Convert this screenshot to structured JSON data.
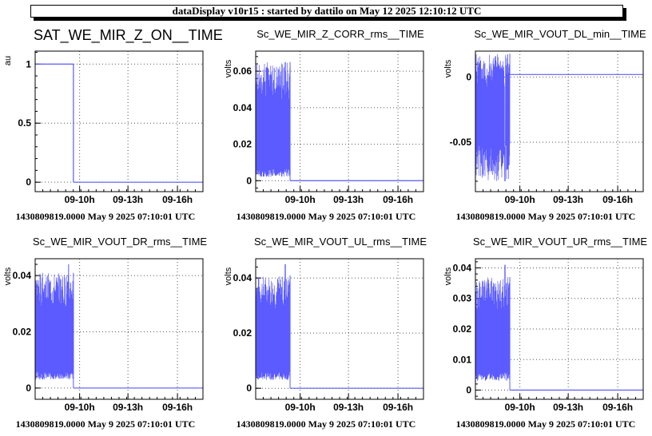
{
  "header": {
    "title": "dataDisplay v10r15 : started by dattilo on May 12 2025 12:10:12 UTC"
  },
  "colors": {
    "series": "#5b5bff",
    "grid": "#555555"
  },
  "chart_data": [
    {
      "type": "line",
      "title": "SAT_WE_MIR_Z_ON__TIME",
      "ylabel": "au",
      "ylim": [
        -0.08,
        1.11
      ],
      "yticks": [
        {
          "v": 0,
          "label": "0"
        },
        {
          "v": 0.5,
          "label": "0.5"
        },
        {
          "v": 1,
          "label": "1"
        }
      ],
      "xticks": [
        "09-10h",
        "09-13h",
        "09-16h"
      ],
      "footer": "1430809819.0000 May 9 2025 07:10:01 UTC",
      "segments": [
        {
          "x": [
            0,
            0.228
          ],
          "y": [
            1,
            1
          ]
        },
        {
          "x": [
            0.228,
            0.228
          ],
          "y": [
            1,
            0
          ]
        },
        {
          "x": [
            0.228,
            1
          ],
          "y": [
            0,
            0
          ]
        }
      ],
      "noise": null
    },
    {
      "type": "line",
      "title": "Sc_WE_MIR_Z_CORR_rms__TIME",
      "ylabel": "volts",
      "ylim": [
        -0.006,
        0.071
      ],
      "yticks": [
        {
          "v": 0,
          "label": "0"
        },
        {
          "v": 0.02,
          "label": "0.02"
        },
        {
          "v": 0.04,
          "label": "0.04"
        },
        {
          "v": 0.06,
          "label": "0.06"
        }
      ],
      "xticks": [
        "09-10h",
        "09-13h",
        "09-16h"
      ],
      "footer": "1430809819.0000 May 9 2025 07:10:01 UTC",
      "segments": [
        {
          "x": [
            0.205,
            1
          ],
          "y": [
            0,
            0
          ]
        }
      ],
      "noise": {
        "x_end": 0.205,
        "low": [
          0.002,
          0.007
        ],
        "high": [
          0.042,
          0.065
        ],
        "peak": 0.065
      }
    },
    {
      "type": "line",
      "title": "Sc_WE_MIR_VOUT_DL_min__TIME",
      "ylabel": "volts",
      "ylim": [
        -0.088,
        0.02
      ],
      "yticks": [
        {
          "v": -0.05,
          "label": "-0.05"
        },
        {
          "v": 0,
          "label": "0"
        }
      ],
      "xticks": [
        "09-10h",
        "09-13h",
        "09-16h"
      ],
      "footer": "1430809819.0000 May 9 2025 07:10:01 UTC",
      "segments": [
        {
          "x": [
            0.205,
            1
          ],
          "y": [
            0.002,
            0.002
          ]
        }
      ],
      "noise": {
        "x_end": 0.205,
        "low": [
          -0.08,
          -0.05
        ],
        "high": [
          -0.01,
          0.018
        ],
        "peak": -0.08
      }
    },
    {
      "type": "line",
      "title": "Sc_WE_MIR_VOUT_DR_rms__TIME",
      "ylabel": "volts",
      "ylim": [
        -0.004,
        0.046
      ],
      "yticks": [
        {
          "v": 0,
          "label": "0"
        },
        {
          "v": 0.02,
          "label": "0.02"
        },
        {
          "v": 0.04,
          "label": "0.04"
        }
      ],
      "xticks": [
        "09-10h",
        "09-13h",
        "09-16h"
      ],
      "footer": "1430809819.0000 May 9 2025 07:10:01 UTC",
      "segments": [
        {
          "x": [
            0.228,
            1
          ],
          "y": [
            0,
            0
          ]
        }
      ],
      "noise": {
        "x_end": 0.228,
        "low": [
          0.003,
          0.006
        ],
        "high": [
          0.028,
          0.041
        ],
        "peak": 0.044
      }
    },
    {
      "type": "line",
      "title": "Sc_WE_MIR_VOUT_UL_rms__TIME",
      "ylabel": "volts",
      "ylim": [
        -0.004,
        0.047
      ],
      "yticks": [
        {
          "v": 0,
          "label": "0"
        },
        {
          "v": 0.02,
          "label": "0.02"
        },
        {
          "v": 0.04,
          "label": "0.04"
        }
      ],
      "xticks": [
        "09-10h",
        "09-13h",
        "09-16h"
      ],
      "footer": "1430809819.0000 May 9 2025 07:10:01 UTC",
      "segments": [
        {
          "x": [
            0.205,
            1
          ],
          "y": [
            0,
            0
          ]
        }
      ],
      "noise": {
        "x_end": 0.205,
        "low": [
          0.003,
          0.006
        ],
        "high": [
          0.028,
          0.041
        ],
        "peak": 0.045
      }
    },
    {
      "type": "line",
      "title": "Sc_WE_MIR_VOUT_UR_rms__TIME",
      "ylabel": "volts",
      "ylim": [
        -0.003,
        0.043
      ],
      "yticks": [
        {
          "v": 0,
          "label": "0"
        },
        {
          "v": 0.01,
          "label": "0.01"
        },
        {
          "v": 0.02,
          "label": "0.02"
        },
        {
          "v": 0.03,
          "label": "0.03"
        },
        {
          "v": 0.04,
          "label": "0.04"
        }
      ],
      "xticks": [
        "09-10h",
        "09-13h",
        "09-16h"
      ],
      "footer": "1430809819.0000 May 9 2025 07:10:01 UTC",
      "segments": [
        {
          "x": [
            0.205,
            1
          ],
          "y": [
            0,
            0
          ]
        }
      ],
      "noise": {
        "x_end": 0.205,
        "low": [
          0.003,
          0.006
        ],
        "high": [
          0.024,
          0.037
        ],
        "peak": 0.041
      }
    }
  ]
}
